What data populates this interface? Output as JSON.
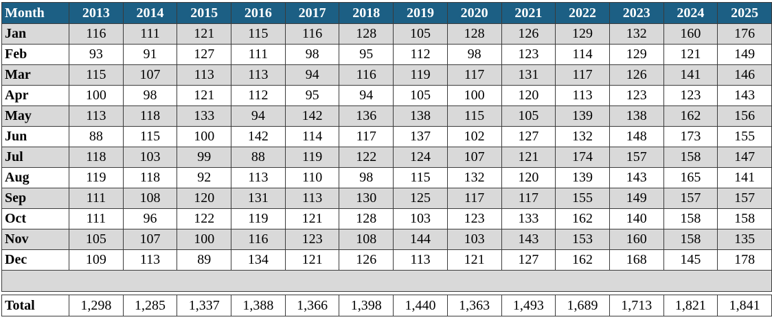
{
  "table": {
    "header": [
      "Month",
      "2013",
      "2014",
      "2015",
      "2016",
      "2017",
      "2018",
      "2019",
      "2020",
      "2021",
      "2022",
      "2023",
      "2024",
      "2025"
    ],
    "rows": [
      {
        "month": "Jan",
        "values": [
          "116",
          "111",
          "121",
          "115",
          "116",
          "128",
          "105",
          "128",
          "126",
          "129",
          "132",
          "160",
          "176"
        ]
      },
      {
        "month": "Feb",
        "values": [
          "93",
          "91",
          "127",
          "111",
          "98",
          "95",
          "112",
          "98",
          "123",
          "114",
          "129",
          "121",
          "149"
        ]
      },
      {
        "month": "Mar",
        "values": [
          "115",
          "107",
          "113",
          "113",
          "94",
          "116",
          "119",
          "117",
          "131",
          "117",
          "126",
          "141",
          "146"
        ]
      },
      {
        "month": "Apr",
        "values": [
          "100",
          "98",
          "121",
          "112",
          "95",
          "94",
          "105",
          "100",
          "120",
          "113",
          "123",
          "123",
          "143"
        ]
      },
      {
        "month": "May",
        "values": [
          "113",
          "118",
          "133",
          "94",
          "142",
          "136",
          "138",
          "115",
          "105",
          "139",
          "138",
          "162",
          "156"
        ]
      },
      {
        "month": "Jun",
        "values": [
          "88",
          "115",
          "100",
          "142",
          "114",
          "117",
          "137",
          "102",
          "127",
          "132",
          "148",
          "173",
          "155"
        ]
      },
      {
        "month": "Jul",
        "values": [
          "118",
          "103",
          "99",
          "88",
          "119",
          "122",
          "124",
          "107",
          "121",
          "174",
          "157",
          "158",
          "147"
        ]
      },
      {
        "month": "Aug",
        "values": [
          "119",
          "118",
          "92",
          "113",
          "110",
          "98",
          "115",
          "132",
          "120",
          "139",
          "143",
          "165",
          "141"
        ]
      },
      {
        "month": "Sep",
        "values": [
          "111",
          "108",
          "120",
          "131",
          "113",
          "130",
          "125",
          "117",
          "117",
          "155",
          "149",
          "157",
          "157"
        ]
      },
      {
        "month": "Oct",
        "values": [
          "111",
          "96",
          "122",
          "119",
          "121",
          "128",
          "103",
          "123",
          "133",
          "162",
          "140",
          "158",
          "158"
        ]
      },
      {
        "month": "Nov",
        "values": [
          "105",
          "107",
          "100",
          "116",
          "123",
          "108",
          "144",
          "103",
          "143",
          "153",
          "160",
          "158",
          "135"
        ]
      },
      {
        "month": "Dec",
        "values": [
          "109",
          "113",
          "89",
          "134",
          "121",
          "126",
          "113",
          "121",
          "127",
          "162",
          "168",
          "145",
          "178"
        ]
      }
    ],
    "total": {
      "label": "Total",
      "values": [
        "1,298",
        "1,285",
        "1,337",
        "1,388",
        "1,366",
        "1,398",
        "1,440",
        "1,363",
        "1,493",
        "1,689",
        "1,713",
        "1,821",
        "1,841"
      ]
    }
  }
}
